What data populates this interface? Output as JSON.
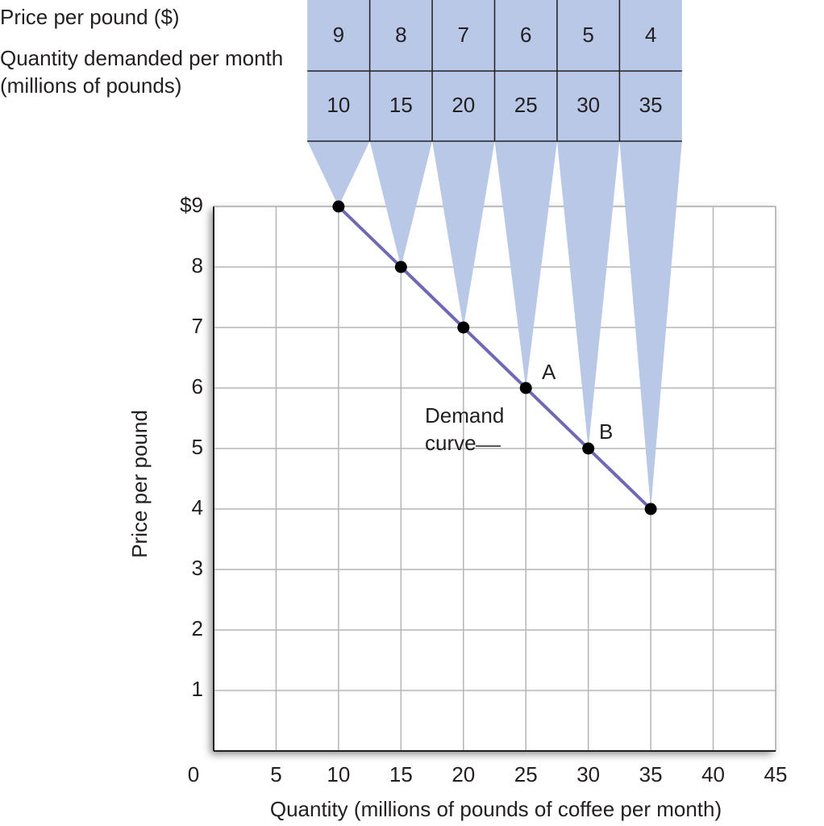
{
  "chart_data": {
    "type": "line",
    "x": [
      10,
      15,
      20,
      25,
      30,
      35
    ],
    "values": [
      9,
      8,
      7,
      6,
      5,
      4
    ],
    "color": "#6f68b4",
    "point_color": "#000000",
    "xlabel": "Quantity (millions of pounds of coffee per month)",
    "ylabel": "Price per pound",
    "xlim": [
      0,
      45
    ],
    "ylim": [
      0,
      9
    ],
    "xticks": [
      0,
      5,
      10,
      15,
      20,
      25,
      30,
      35,
      40,
      45
    ],
    "yticks": [
      1,
      2,
      3,
      4,
      5,
      6,
      7,
      8,
      {
        "value": 9,
        "label": "$9"
      }
    ],
    "grid": true,
    "annotations": [
      "A",
      "B",
      "Demand curve"
    ],
    "table": {
      "row_labels": [
        "Price per pound ($)",
        "Quantity demanded per month (millions of pounds)"
      ]
    }
  }
}
